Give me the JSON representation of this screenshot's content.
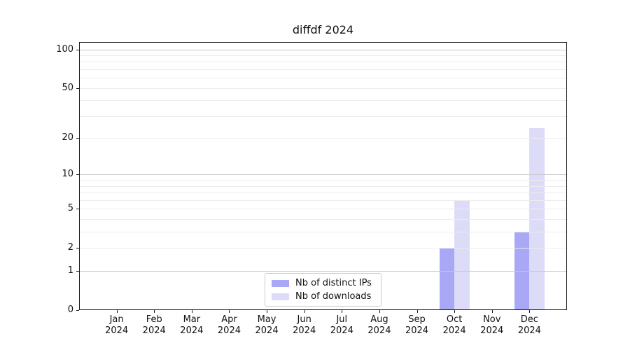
{
  "chart_data": {
    "type": "bar",
    "title": "diffdf 2024",
    "categories": [
      "Jan",
      "Feb",
      "Mar",
      "Apr",
      "May",
      "Jun",
      "Jul",
      "Aug",
      "Sep",
      "Oct",
      "Nov",
      "Dec"
    ],
    "category_year": "2024",
    "series": [
      {
        "name": "Nb of distinct IPs",
        "color": "#a8a8f7",
        "values": [
          0,
          0,
          0,
          0,
          0,
          0,
          0,
          0,
          0,
          2,
          0,
          3
        ]
      },
      {
        "name": "Nb of downloads",
        "color": "#dcdcf9",
        "values": [
          0,
          0,
          0,
          0,
          0,
          0,
          0,
          0,
          0,
          6,
          0,
          24
        ]
      }
    ],
    "yscale": "log1p",
    "ylim": [
      0,
      100
    ],
    "yticks": [
      0,
      1,
      2,
      5,
      10,
      20,
      50,
      100
    ],
    "major_gridlines": [
      1,
      10,
      100
    ],
    "minor_gridlines": [
      2,
      3,
      4,
      5,
      6,
      7,
      8,
      9,
      20,
      30,
      40,
      50,
      60,
      70,
      80,
      90
    ],
    "grid": true,
    "legend_position": "lower center",
    "colors": {
      "axis": "#1a1a1a",
      "text": "#111111",
      "major_grid": "#c8c8c8",
      "minor_grid": "#ececec",
      "legend_border": "#cccccc",
      "background": "#ffffff"
    }
  }
}
